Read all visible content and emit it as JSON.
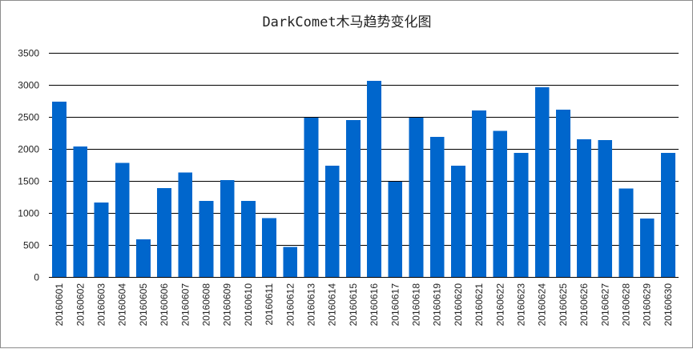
{
  "chart_data": {
    "type": "bar",
    "title": "DarkComet木马趋势变化图",
    "xlabel": "",
    "ylabel": "",
    "ylim": [
      0,
      3500
    ],
    "yticks": [
      0,
      500,
      1000,
      1500,
      2000,
      2500,
      3000,
      3500
    ],
    "grid": true,
    "legend": "none",
    "bar_color": "#0066cc",
    "categories": [
      "20160601",
      "20160602",
      "20160603",
      "20160604",
      "20160605",
      "20160606",
      "20160607",
      "20160608",
      "20160609",
      "20160610",
      "20160611",
      "20160612",
      "20160613",
      "20160614",
      "20160615",
      "20160616",
      "20160617",
      "20160618",
      "20160619",
      "20160620",
      "20160621",
      "20160622",
      "20160623",
      "20160624",
      "20160625",
      "20160626",
      "20160627",
      "20160628",
      "20160629",
      "20160630"
    ],
    "values": [
      2740,
      2040,
      1160,
      1780,
      590,
      1390,
      1630,
      1190,
      1510,
      1190,
      920,
      470,
      2490,
      1740,
      2450,
      3060,
      1490,
      2490,
      2190,
      1740,
      2600,
      2280,
      1940,
      2960,
      2610,
      2150,
      2140,
      1380,
      910,
      1940
    ]
  }
}
